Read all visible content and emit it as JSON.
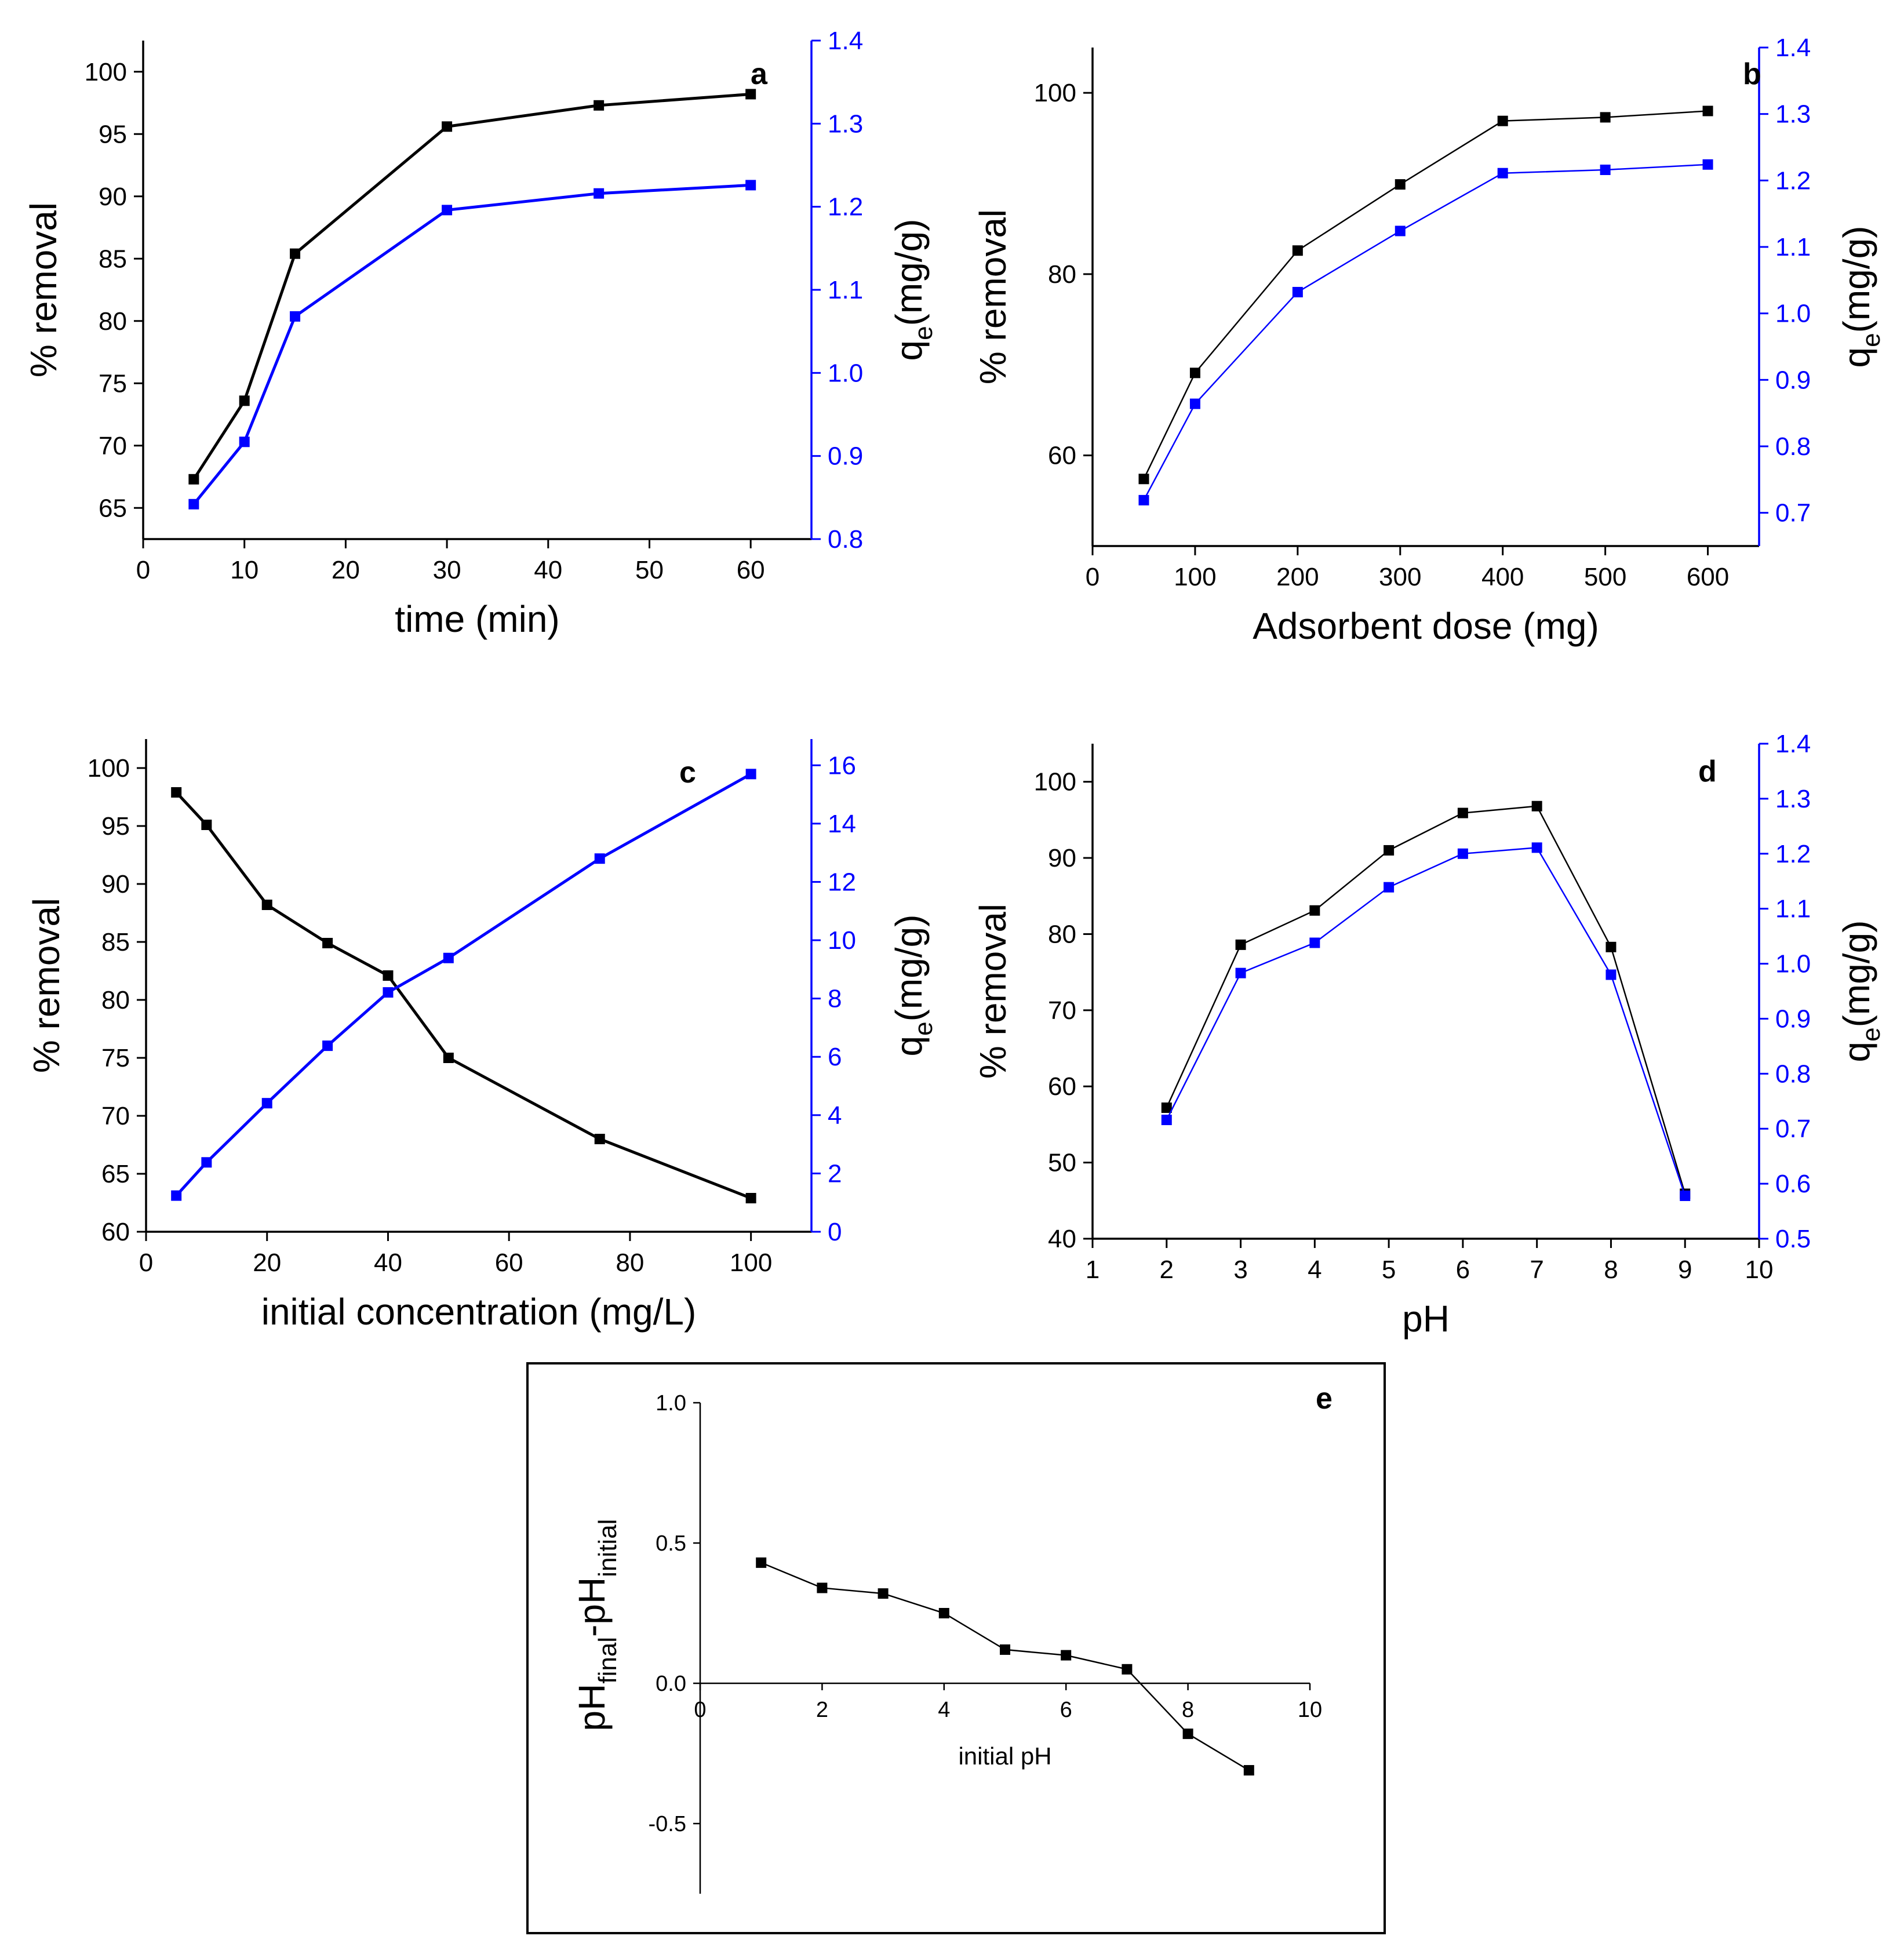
{
  "colors": {
    "series1": "#000000",
    "series2": "#0000ff",
    "axis_black": "#000000",
    "axis_blue": "#0000ff"
  },
  "chart_data": [
    {
      "id": "a",
      "type": "line",
      "panel_label": "a",
      "xlabel": "time (min)",
      "ylabel": "% removal",
      "y2label_main": "q",
      "y2label_sub": "e",
      "y2label_unit": "(mg/g)",
      "xlim": [
        0,
        66
      ],
      "xticks": [
        0,
        10,
        20,
        30,
        40,
        50,
        60
      ],
      "ylim": [
        62.5,
        102.5
      ],
      "yticks": [
        65,
        70,
        75,
        80,
        85,
        90,
        95,
        100
      ],
      "y2lim": [
        0.8,
        1.4
      ],
      "y2ticks": [
        "0.8",
        "0.9",
        "1.0",
        "1.1",
        "1.2",
        "1.3",
        "1.4"
      ],
      "series": [
        {
          "name": "% removal",
          "axis": "left",
          "color": "#000000",
          "x": [
            5,
            10,
            15,
            30,
            45,
            60
          ],
          "values": [
            67.3,
            73.6,
            85.4,
            95.6,
            97.3,
            98.2
          ]
        },
        {
          "name": "qe",
          "axis": "right",
          "color": "#0000ff",
          "x": [
            5,
            10,
            15,
            30,
            45,
            60
          ],
          "values": [
            0.842,
            0.917,
            1.068,
            1.196,
            1.216,
            1.226
          ]
        }
      ]
    },
    {
      "id": "b",
      "type": "line",
      "panel_label": "b",
      "xlabel": "Adsorbent dose (mg)",
      "ylabel": "% removal",
      "y2label_main": "q",
      "y2label_sub": "e",
      "y2label_unit": "(mg/g)",
      "xlim": [
        0,
        650
      ],
      "xticks": [
        0,
        100,
        200,
        300,
        400,
        500,
        600
      ],
      "ylim": [
        50,
        105
      ],
      "yticks": [
        60,
        80,
        100
      ],
      "y2lim": [
        0.65,
        1.4
      ],
      "y2ticks": [
        "0.7",
        "0.8",
        "0.9",
        "1.0",
        "1.1",
        "1.2",
        "1.3",
        "1.4"
      ],
      "series": [
        {
          "name": "% removal",
          "axis": "left",
          "color": "#000000",
          "x": [
            50,
            100,
            200,
            300,
            400,
            500,
            600
          ],
          "values": [
            57.4,
            69.1,
            82.6,
            89.9,
            96.9,
            97.3,
            98.0
          ]
        },
        {
          "name": "qe",
          "axis": "right",
          "color": "#0000ff",
          "x": [
            50,
            100,
            200,
            300,
            400,
            500,
            600
          ],
          "values": [
            0.719,
            0.864,
            1.032,
            1.124,
            1.211,
            1.216,
            1.224
          ]
        }
      ]
    },
    {
      "id": "c",
      "type": "line",
      "panel_label": "c",
      "xlabel": "initial concentration (mg/L)",
      "ylabel": "% removal",
      "y2label_main": "q",
      "y2label_sub": "e",
      "y2label_unit": "(mg/g)",
      "xlim": [
        0,
        110
      ],
      "xticks": [
        0,
        20,
        40,
        60,
        80,
        100
      ],
      "ylim": [
        60,
        102.5
      ],
      "yticks": [
        60,
        65,
        70,
        75,
        80,
        85,
        90,
        95,
        100
      ],
      "y2lim": [
        0,
        16.9
      ],
      "y2ticks": [
        "0",
        "2",
        "4",
        "6",
        "8",
        "10",
        "12",
        "14",
        "16"
      ],
      "series": [
        {
          "name": "% removal",
          "axis": "left",
          "color": "#000000",
          "x": [
            5,
            10,
            20,
            30,
            40,
            50,
            75,
            100
          ],
          "values": [
            97.9,
            95.1,
            88.2,
            84.9,
            82.1,
            75.0,
            68.0,
            62.9
          ]
        },
        {
          "name": "qe",
          "axis": "right",
          "color": "#0000ff",
          "x": [
            5,
            10,
            20,
            30,
            40,
            50,
            75,
            100
          ],
          "values": [
            1.24,
            2.38,
            4.41,
            6.38,
            8.21,
            9.39,
            12.8,
            15.7
          ]
        }
      ]
    },
    {
      "id": "d",
      "type": "line",
      "panel_label": "d",
      "xlabel": "pH",
      "ylabel": "% removal",
      "y2label_main": "q",
      "y2label_sub": "e",
      "y2label_unit": "(mg/g)",
      "xlim": [
        1,
        10
      ],
      "xticks": [
        1,
        2,
        3,
        4,
        5,
        6,
        7,
        8,
        9,
        10
      ],
      "ylim": [
        40,
        105
      ],
      "yticks": [
        40,
        50,
        60,
        70,
        80,
        90,
        100
      ],
      "y2lim": [
        0.5,
        1.4
      ],
      "y2ticks": [
        "0.5",
        "0.6",
        "0.7",
        "0.8",
        "0.9",
        "1.0",
        "1.1",
        "1.2",
        "1.3",
        "1.4"
      ],
      "series": [
        {
          "name": "% removal",
          "axis": "left",
          "color": "#000000",
          "x": [
            2,
            3,
            4,
            5,
            6,
            7,
            8,
            9
          ],
          "values": [
            57.2,
            78.6,
            83.1,
            91.0,
            95.9,
            96.8,
            78.3,
            45.9
          ]
        },
        {
          "name": "qe",
          "axis": "right",
          "color": "#0000ff",
          "x": [
            2,
            3,
            4,
            5,
            6,
            7,
            8,
            9
          ],
          "values": [
            0.716,
            0.983,
            1.038,
            1.139,
            1.2,
            1.211,
            0.98,
            0.578
          ]
        }
      ]
    },
    {
      "id": "e",
      "type": "line",
      "panel_label": "e",
      "xlabel": "initial pH",
      "ylabel_main": "pH",
      "ylabel_sub1": "final",
      "ylabel_mid": "-pH",
      "ylabel_sub2": "initial",
      "xlim": [
        0,
        10
      ],
      "xticks": [
        "0",
        "2",
        "4",
        "6",
        "8",
        "10"
      ],
      "ylim": [
        -0.75,
        1.0
      ],
      "yticks": [
        "-0.5",
        "0.0",
        "0.5",
        "1.0"
      ],
      "series": [
        {
          "name": "pHfinal-pHinitial",
          "axis": "left",
          "color": "#000000",
          "x": [
            1,
            2,
            3,
            4,
            5,
            6,
            7,
            8,
            9
          ],
          "values": [
            0.43,
            0.34,
            0.32,
            0.25,
            0.12,
            0.1,
            0.05,
            -0.18,
            -0.31
          ]
        }
      ]
    }
  ]
}
